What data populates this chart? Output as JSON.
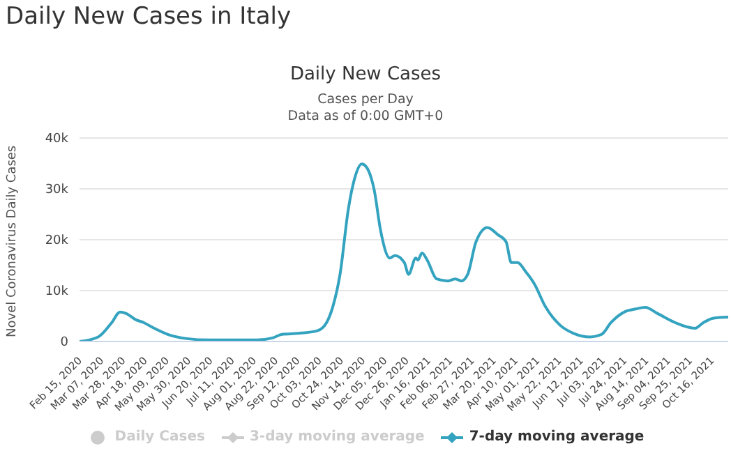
{
  "chart_data": {
    "type": "line",
    "title": "Daily New Cases in Italy",
    "subtitle": "Daily New Cases",
    "annotations": [
      "Cases per Day",
      "Data as of 0:00 GMT+0"
    ],
    "ylabel": "Novel Coronavirus Daily Cases",
    "x": [
      "2020-02-15",
      "2020-03-04",
      "2020-03-17",
      "2020-03-25",
      "2020-03-31",
      "2020-04-09",
      "2020-04-17",
      "2020-04-26",
      "2020-05-10",
      "2020-05-27",
      "2020-06-19",
      "2020-08-04",
      "2020-08-19",
      "2020-08-28",
      "2020-09-13",
      "2020-10-01",
      "2020-10-10",
      "2020-10-16",
      "2020-10-23",
      "2020-10-31",
      "2020-11-06",
      "2020-11-13",
      "2020-11-17",
      "2020-11-25",
      "2020-12-01",
      "2020-12-10",
      "2020-12-15",
      "2020-12-24",
      "2020-12-28",
      "2021-01-04",
      "2021-01-06",
      "2021-01-10",
      "2021-01-15",
      "2021-01-24",
      "2021-02-04",
      "2021-02-11",
      "2021-02-17",
      "2021-02-23",
      "2021-03-03",
      "2021-03-14",
      "2021-03-24",
      "2021-04-01",
      "2021-04-06",
      "2021-04-12",
      "2021-04-20",
      "2021-04-28",
      "2021-05-09",
      "2021-05-23",
      "2021-06-05",
      "2021-06-21",
      "2021-07-02",
      "2021-07-11",
      "2021-07-25",
      "2021-08-04",
      "2021-08-13",
      "2021-08-25",
      "2021-09-11",
      "2021-09-30",
      "2021-10-08",
      "2021-10-18",
      "2021-11-01"
    ],
    "series": [
      {
        "name": "Daily Cases",
        "type": "scatter",
        "color": "#cccccc",
        "values": [
          null,
          null,
          null,
          null,
          null,
          null,
          null,
          null,
          null,
          null,
          null,
          null,
          null,
          null,
          null,
          null,
          null,
          null,
          null,
          null,
          null,
          null,
          null,
          null,
          null,
          null,
          null,
          null,
          null,
          null,
          null,
          null,
          null,
          null,
          null,
          null,
          null,
          null,
          null,
          null,
          null,
          null,
          null,
          null,
          null,
          null,
          null,
          null,
          null,
          null,
          null,
          null,
          null,
          null,
          null,
          null,
          null,
          null,
          null,
          null,
          null
        ]
      },
      {
        "name": "3-day moving average",
        "type": "line",
        "color": "#cccccc",
        "values": [
          null,
          null,
          null,
          null,
          null,
          null,
          null,
          null,
          null,
          null,
          null,
          null,
          null,
          null,
          null,
          null,
          null,
          null,
          null,
          null,
          null,
          null,
          null,
          null,
          null,
          null,
          null,
          null,
          null,
          null,
          null,
          null,
          null,
          null,
          null,
          null,
          null,
          null,
          null,
          null,
          null,
          null,
          null,
          null,
          null,
          null,
          null,
          null,
          null,
          null,
          null,
          null,
          null,
          null,
          null,
          null,
          null,
          null,
          null,
          null,
          null
        ]
      },
      {
        "name": "7-day moving average",
        "type": "line",
        "color": "#33a3bf",
        "values": [
          0,
          900,
          3700,
          5800,
          5500,
          4300,
          3700,
          2700,
          1400,
          600,
          300,
          300,
          700,
          1400,
          1600,
          2100,
          3700,
          6800,
          13200,
          26000,
          32000,
          34900,
          34400,
          29700,
          21900,
          16400,
          16900,
          15500,
          13200,
          16400,
          16000,
          17400,
          16000,
          12300,
          11900,
          12300,
          11900,
          13200,
          19600,
          22400,
          21000,
          19600,
          15500,
          15500,
          13700,
          11400,
          6800,
          3200,
          1600,
          900,
          1400,
          3700,
          5900,
          6400,
          6700,
          5500,
          3700,
          2600,
          3700,
          4600,
          4800
        ]
      }
    ],
    "xlim": [
      "2020-02-15",
      "2021-11-01"
    ],
    "xticks": [
      {
        "value": "2020-02-15",
        "label": "Feb 15, 2020"
      },
      {
        "value": "2020-03-07",
        "label": "Mar 07, 2020"
      },
      {
        "value": "2020-03-28",
        "label": "Mar 28, 2020"
      },
      {
        "value": "2020-04-18",
        "label": "Apr 18, 2020"
      },
      {
        "value": "2020-05-09",
        "label": "May 09, 2020"
      },
      {
        "value": "2020-05-30",
        "label": "May 30, 2020"
      },
      {
        "value": "2020-06-20",
        "label": "Jun 20, 2020"
      },
      {
        "value": "2020-07-11",
        "label": "Jul 11, 2020"
      },
      {
        "value": "2020-08-01",
        "label": "Aug 01, 2020"
      },
      {
        "value": "2020-08-22",
        "label": "Aug 22, 2020"
      },
      {
        "value": "2020-09-12",
        "label": "Sep 12, 2020"
      },
      {
        "value": "2020-10-03",
        "label": "Oct 03, 2020"
      },
      {
        "value": "2020-10-24",
        "label": "Oct 24, 2020"
      },
      {
        "value": "2020-11-14",
        "label": "Nov 14, 2020"
      },
      {
        "value": "2020-12-05",
        "label": "Dec 05, 2020"
      },
      {
        "value": "2020-12-26",
        "label": "Dec 26, 2020"
      },
      {
        "value": "2021-01-16",
        "label": "Jan 16, 2021"
      },
      {
        "value": "2021-02-06",
        "label": "Feb 06, 2021"
      },
      {
        "value": "2021-02-27",
        "label": "Feb 27, 2021"
      },
      {
        "value": "2021-03-20",
        "label": "Mar 20, 2021"
      },
      {
        "value": "2021-04-10",
        "label": "Apr 10, 2021"
      },
      {
        "value": "2021-05-01",
        "label": "May 01, 2021"
      },
      {
        "value": "2021-05-22",
        "label": "May 22, 2021"
      },
      {
        "value": "2021-06-12",
        "label": "Jun 12, 2021"
      },
      {
        "value": "2021-07-03",
        "label": "Jul 03, 2021"
      },
      {
        "value": "2021-07-24",
        "label": "Jul 24, 2021"
      },
      {
        "value": "2021-08-14",
        "label": "Aug 14, 2021"
      },
      {
        "value": "2021-09-04",
        "label": "Sep 04, 2021"
      },
      {
        "value": "2021-09-25",
        "label": "Sep 25, 2021"
      },
      {
        "value": "2021-10-16",
        "label": "Oct 16, 2021"
      }
    ],
    "ylim": [
      0,
      40000
    ],
    "yticks": [
      0,
      {
        "value": 10000,
        "label": "10k"
      },
      {
        "value": 20000,
        "label": "20k"
      },
      {
        "value": 30000,
        "label": "30k"
      },
      {
        "value": 40000,
        "label": "40k"
      }
    ],
    "grid": "y",
    "legend": "bottom",
    "marker": "none",
    "line_style": "solid"
  }
}
